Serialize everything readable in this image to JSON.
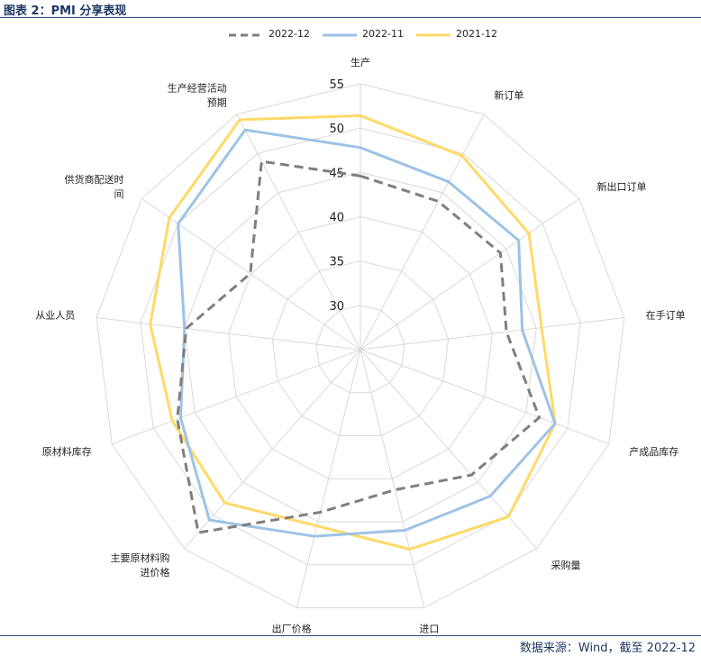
{
  "header": {
    "title": "图表 2：PMI 分享表现"
  },
  "footer": {
    "source": "数据来源：Wind，截至 2022-12"
  },
  "chart_data": {
    "type": "radar",
    "axes": [
      "生产",
      "新订单",
      "新出口订单",
      "在手订单",
      "产成品库存",
      "采购量",
      "进口",
      "出厂价格",
      "主要原材料购进价格",
      "原材料库存",
      "从业人员",
      "供货商配送时间",
      "生产经营活动预期"
    ],
    "axis_labels": [
      [
        "生产"
      ],
      [
        "新订单"
      ],
      [
        "新出口订单"
      ],
      [
        "在手订单"
      ],
      [
        "产成品库存"
      ],
      [
        "采购量"
      ],
      [
        "进口"
      ],
      [
        "出厂价格"
      ],
      [
        "主要原材料购",
        "进价格"
      ],
      [
        "原材料库存"
      ],
      [
        "从业人员"
      ],
      [
        "供货商配送时",
        "间"
      ],
      [
        "生产经营活动",
        "预期"
      ]
    ],
    "rlim": [
      25,
      55
    ],
    "ticks": [
      30,
      35,
      40,
      45,
      50,
      55
    ],
    "series": [
      {
        "name": "2022-12",
        "color": "#7f7f7f",
        "style": "dashed",
        "values": [
          44.6,
          43.9,
          44.2,
          41.6,
          46.6,
          43.9,
          41.3,
          43.9,
          52.6,
          47.1,
          44.8,
          40.1,
          49.0
        ]
      },
      {
        "name": "2022-11",
        "color": "#9dc3e6",
        "style": "solid",
        "values": [
          47.8,
          46.4,
          46.7,
          43.4,
          48.5,
          47.1,
          46.0,
          46.7,
          50.7,
          46.7,
          45.0,
          50.0,
          53.0
        ]
      },
      {
        "name": "2021-12",
        "color": "#ffd966",
        "style": "solid",
        "values": [
          51.4,
          49.7,
          48.1,
          45.6,
          48.5,
          50.2,
          48.2,
          45.5,
          48.1,
          47.7,
          48.9,
          51.2,
          54.3
        ]
      }
    ],
    "legend_position": "top",
    "grid": true
  }
}
